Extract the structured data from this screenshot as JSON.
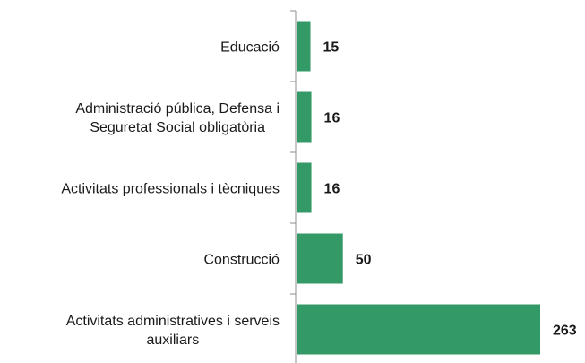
{
  "chart_data": {
    "type": "bar",
    "orientation": "horizontal",
    "categories": [
      "Educació",
      "Administració pública, Defensa i Seguretat Social obligatòria",
      "Activitats professionals i tècniques",
      "Construcció",
      "Activitats administratives i serveis auxiliars"
    ],
    "category_lines": [
      [
        "Educació"
      ],
      [
        "Administració pública, Defensa i",
        "Seguretat Social obligatòria"
      ],
      [
        "Activitats professionals i tècniques"
      ],
      [
        "Construcció"
      ],
      [
        "Activitats administratives i serveis",
        "auxiliars"
      ]
    ],
    "values": [
      15,
      16,
      16,
      50,
      263
    ],
    "data_labels": [
      "15",
      "16",
      "16",
      "50",
      "263"
    ],
    "xlim": [
      0,
      263
    ],
    "bar_color": "#339966",
    "grid": false,
    "legend": "none",
    "title": "",
    "xlabel": "",
    "ylabel": ""
  }
}
